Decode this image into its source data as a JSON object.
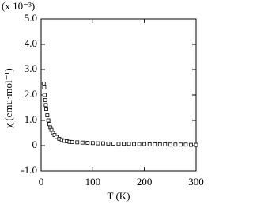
{
  "chart_data": {
    "type": "scatter",
    "y_multiplier": "(x 10⁻³)",
    "y_label": "χ (emu·mol⁻¹)",
    "x_label": "T (K)",
    "x": [
      5,
      6,
      7,
      8,
      9,
      10,
      12,
      14,
      16,
      18,
      20,
      23,
      26,
      30,
      35,
      40,
      45,
      50,
      55,
      60,
      70,
      80,
      90,
      100,
      110,
      120,
      130,
      140,
      150,
      160,
      170,
      180,
      190,
      200,
      210,
      220,
      230,
      240,
      250,
      260,
      270,
      280,
      290,
      300
    ],
    "values": [
      2.45,
      2.3,
      2.0,
      1.8,
      1.6,
      1.45,
      1.2,
      1.0,
      0.85,
      0.72,
      0.62,
      0.5,
      0.42,
      0.34,
      0.27,
      0.22,
      0.19,
      0.17,
      0.15,
      0.14,
      0.13,
      0.12,
      0.11,
      0.1,
      0.09,
      0.09,
      0.08,
      0.08,
      0.07,
      0.07,
      0.07,
      0.06,
      0.06,
      0.06,
      0.05,
      0.05,
      0.05,
      0.05,
      0.04,
      0.04,
      0.04,
      0.04,
      0.03,
      0.03
    ],
    "color": "#000000",
    "xlim": [
      0,
      300
    ],
    "xticks": [
      0,
      100,
      200,
      300
    ],
    "ylim": [
      -1,
      5
    ],
    "yticks": [
      {
        "value": -1,
        "label": "-1.0"
      },
      0,
      {
        "value": 1,
        "label": "1.0"
      },
      {
        "value": 2,
        "label": "2.0"
      },
      {
        "value": 3,
        "label": "3.0"
      },
      {
        "value": 4,
        "label": "4.0"
      },
      {
        "value": 5,
        "label": "5.0"
      }
    ]
  }
}
